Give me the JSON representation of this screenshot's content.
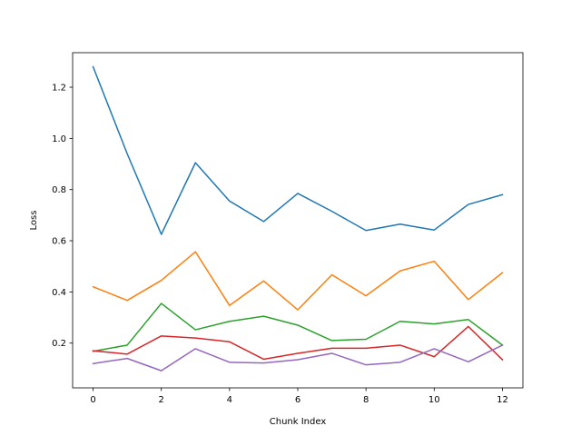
{
  "chart_data": {
    "type": "line",
    "title": "",
    "xlabel": "Chunk Index",
    "ylabel": "Loss",
    "xlim": [
      -0.6,
      12.6
    ],
    "ylim": [
      0.025,
      1.335
    ],
    "grid": false,
    "x": [
      0,
      1,
      2,
      3,
      4,
      5,
      6,
      7,
      8,
      9,
      10,
      11,
      12
    ],
    "x_ticks": [
      0,
      2,
      4,
      6,
      8,
      10,
      12
    ],
    "y_ticks": [
      0.2,
      0.4,
      0.6,
      0.8,
      1.0,
      1.2
    ],
    "x_tick_labels": [
      "0",
      "2",
      "4",
      "6",
      "8",
      "10",
      "12"
    ],
    "y_tick_labels": [
      "0.2",
      "0.4",
      "0.6",
      "0.8",
      "1.0",
      "1.2"
    ],
    "series": [
      {
        "color": "#1f77b4",
        "values": [
          1.28,
          0.94,
          0.625,
          0.905,
          0.755,
          0.675,
          0.785,
          0.715,
          0.64,
          0.665,
          0.642,
          0.742,
          0.78
        ]
      },
      {
        "color": "#ff7f0e",
        "values": [
          0.42,
          0.367,
          0.445,
          0.557,
          0.347,
          0.443,
          0.33,
          0.467,
          0.385,
          0.482,
          0.52,
          0.37,
          0.475
        ]
      },
      {
        "color": "#2ca02c",
        "values": [
          0.168,
          0.192,
          0.355,
          0.252,
          0.285,
          0.305,
          0.27,
          0.21,
          0.215,
          0.285,
          0.275,
          0.292,
          0.192
        ]
      },
      {
        "color": "#d62728",
        "values": [
          0.17,
          0.157,
          0.228,
          0.22,
          0.205,
          0.137,
          0.16,
          0.18,
          0.18,
          0.192,
          0.147,
          0.265,
          0.135
        ]
      },
      {
        "color": "#9467bd",
        "values": [
          0.12,
          0.14,
          0.092,
          0.178,
          0.125,
          0.122,
          0.135,
          0.16,
          0.115,
          0.125,
          0.178,
          0.127,
          0.192
        ]
      }
    ]
  }
}
